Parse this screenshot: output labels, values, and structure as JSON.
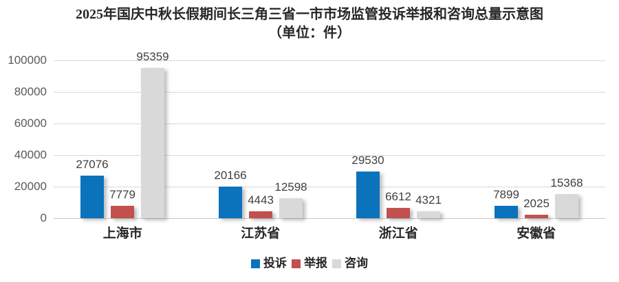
{
  "chart_data": {
    "type": "bar",
    "title": "2025年国庆中秋长假期间长三角三省一市市场监管投诉举报和咨询总量示意图",
    "subtitle": "（单位：件）",
    "categories": [
      "上海市",
      "江苏省",
      "浙江省",
      "安徽省"
    ],
    "category_keys": [
      "shanghai",
      "jiangsu",
      "zhejiang",
      "anhui"
    ],
    "series": [
      {
        "name": "投诉",
        "key": "complaints",
        "color": "#0B72BC",
        "values": [
          27076,
          20166,
          29530,
          7899
        ]
      },
      {
        "name": "举报",
        "key": "reports",
        "color": "#C1504E",
        "values": [
          7779,
          4443,
          6612,
          2025
        ]
      },
      {
        "name": "咨询",
        "key": "consultations",
        "color": "#D9D9D9",
        "values": [
          95359,
          12598,
          4321,
          15368
        ]
      }
    ],
    "ylim": [
      0,
      100000
    ],
    "yticks": [
      0,
      20000,
      40000,
      60000,
      80000,
      100000
    ],
    "grid": true,
    "data_labels": true,
    "legend_position": "bottom",
    "style": {
      "title_color": "#262626",
      "text_color": "#262626",
      "value_label_color": "#404040",
      "tick_label_color": "#595959",
      "grid_color": "#D9D9D9",
      "axis_color": "#C6C6C6",
      "background": "#FFFFFF"
    }
  }
}
